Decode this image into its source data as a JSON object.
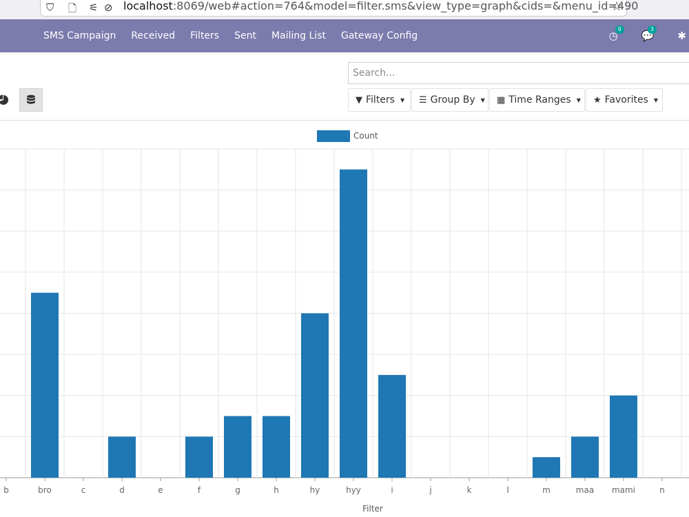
{
  "browser": {
    "url_host": "localhost",
    "url_rest": ":8069/web#action=764&model=filter.sms&view_type=graph&cids=&menu_id=490"
  },
  "navbar": {
    "items": [
      "SMS Campaign",
      "Received",
      "Filters",
      "Sent",
      "Mailing List",
      "Gateway Config"
    ],
    "activity_count": "9",
    "messages_count": "3"
  },
  "search": {
    "placeholder": "Search..."
  },
  "controls": {
    "filters": "Filters",
    "group_by": "Group By",
    "time_ranges": "Time Ranges",
    "favorites": "Favorites"
  },
  "colors": {
    "navbar": "#7c7bad",
    "bar": "#1f77b4",
    "badge": "#00a09d"
  },
  "chart_data": {
    "type": "bar",
    "legend": [
      "Count"
    ],
    "xlabel": "Filter",
    "ylabel": "",
    "ylim": [
      0,
      8
    ],
    "grid": true,
    "legend_position": "top-center",
    "categories": [
      "b",
      "bro",
      "c",
      "d",
      "e",
      "f",
      "g",
      "h",
      "hy",
      "hyy",
      "i",
      "j",
      "k",
      "l",
      "m",
      "maa",
      "mami",
      "n"
    ],
    "series": [
      {
        "name": "Count",
        "values": [
          0,
          4.5,
          0,
          1,
          0,
          1,
          1.5,
          1.5,
          4,
          7.5,
          2.5,
          0,
          0,
          0,
          0.5,
          1,
          2,
          0
        ]
      }
    ]
  }
}
